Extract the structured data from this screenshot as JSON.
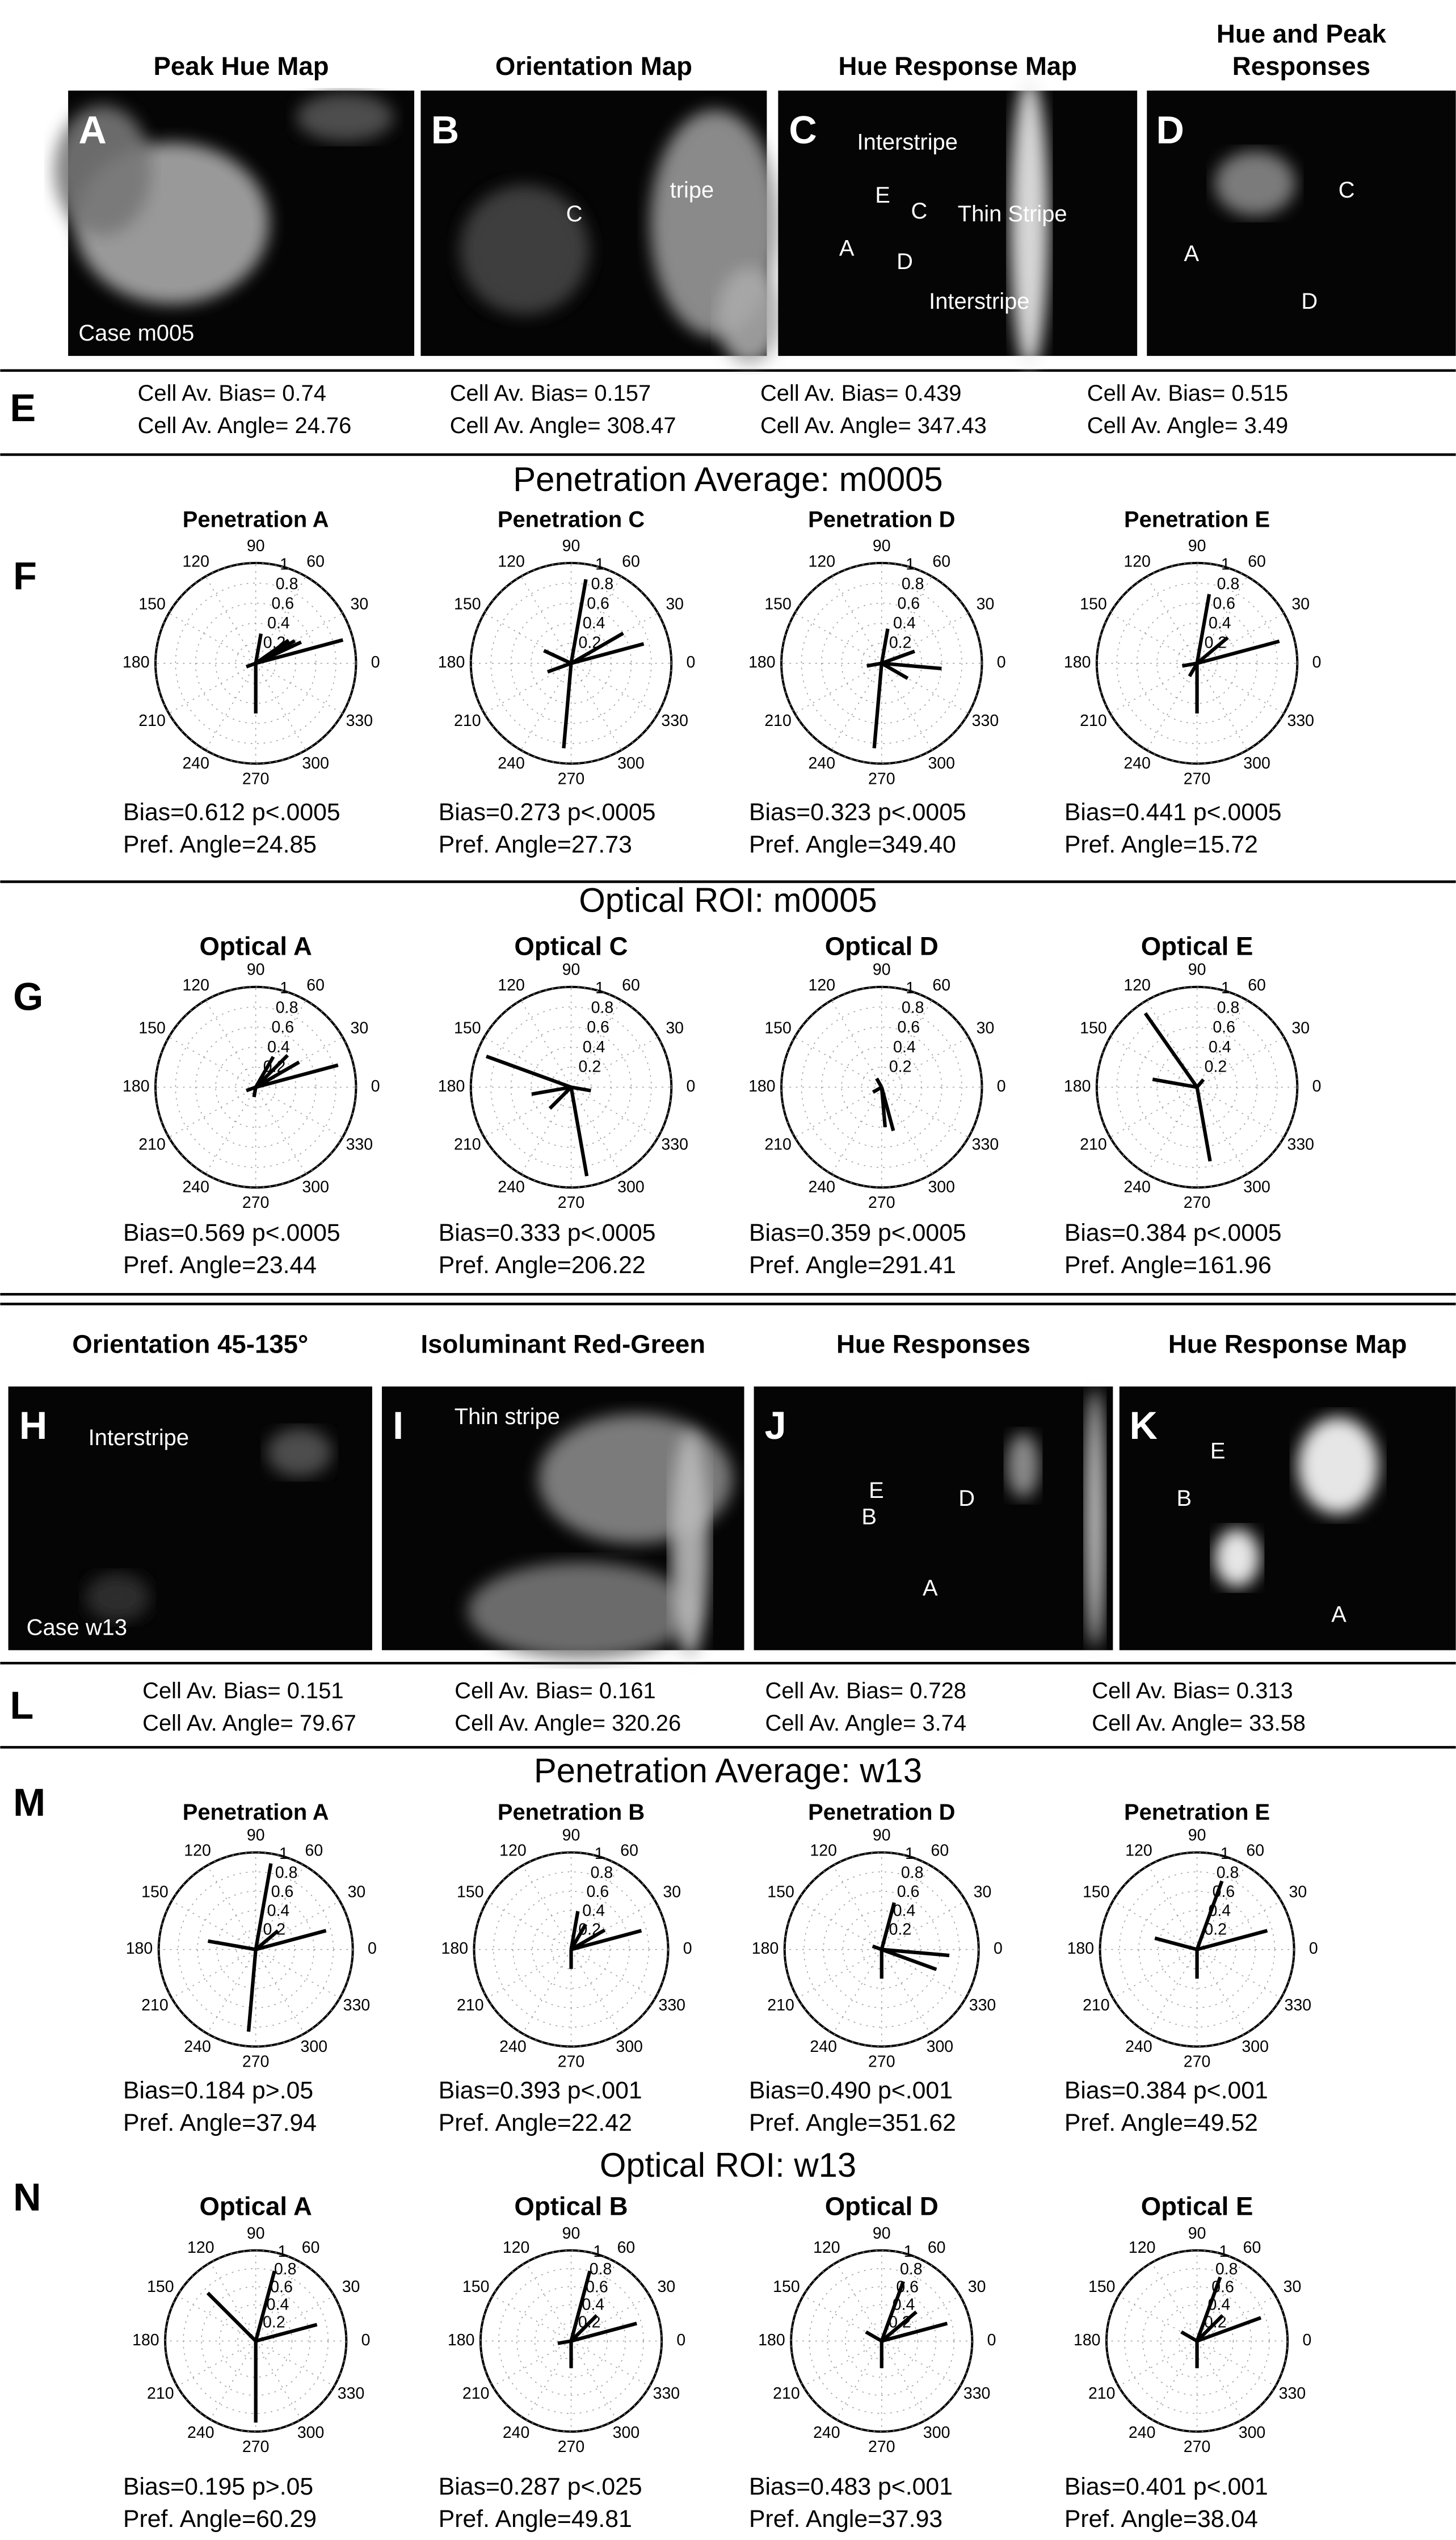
{
  "image_rows": [
    {
      "panels": [
        {
          "title": [
            "Peak Hue Map"
          ],
          "labels": [
            "A",
            "Case m005"
          ]
        },
        {
          "title": [
            "Orientation Map"
          ],
          "labels": [
            "B",
            "C",
            "tripe"
          ]
        },
        {
          "title": [
            "Hue Response Map"
          ],
          "labels": [
            "C",
            "Interstripe",
            "Thin Stripe",
            "Interstripe",
            "A",
            "E",
            "C",
            "D"
          ]
        },
        {
          "title": [
            "Hue and Peak",
            "Responses"
          ],
          "labels": [
            "D",
            "A",
            "C",
            "D"
          ]
        }
      ]
    },
    {
      "panels": [
        {
          "title": [
            "Orientation 45-135°"
          ],
          "labels": [
            "H",
            "Interstripe",
            "Case w13"
          ]
        },
        {
          "title": [
            "Isoluminant Red-Green"
          ],
          "labels": [
            "I",
            "Thin stripe"
          ]
        },
        {
          "title": [
            "Hue Responses"
          ],
          "labels": [
            "J",
            "E",
            "B",
            "D",
            "A"
          ]
        },
        {
          "title": [
            "Hue Response Map"
          ],
          "labels": [
            "K",
            "E",
            "B",
            "A"
          ]
        }
      ]
    }
  ],
  "stat_rows": [
    {
      "letter": "E",
      "cells": [
        [
          "Cell Av. Bias= 0.74",
          "Cell Av. Angle= 24.76"
        ],
        [
          "Cell Av. Bias= 0.157",
          "Cell Av. Angle= 308.47"
        ],
        [
          "Cell Av. Bias= 0.439",
          "Cell Av. Angle= 347.43"
        ],
        [
          "Cell Av. Bias= 0.515",
          "Cell Av. Angle= 3.49"
        ]
      ]
    },
    {
      "letter": "L",
      "cells": [
        [
          "Cell Av. Bias= 0.151",
          "Cell Av. Angle= 79.67"
        ],
        [
          "Cell Av. Bias= 0.161",
          "Cell Av. Angle= 320.26"
        ],
        [
          "Cell Av. Bias= 0.728",
          "Cell Av. Angle= 3.74"
        ],
        [
          "Cell Av. Bias= 0.313",
          "Cell Av. Angle= 33.58"
        ]
      ]
    }
  ],
  "angle_labels": [
    0,
    30,
    60,
    90,
    120,
    150,
    180,
    210,
    240,
    270,
    300,
    330
  ],
  "radial_labels": [
    0.2,
    0.4,
    0.6,
    0.8,
    1
  ],
  "polar_sections": [
    {
      "letter": "F",
      "heading": "Penetration Average: m0005",
      "plots": [
        {
          "title": "Penetration A",
          "stats": [
            "Bias=0.612  p<.0005",
            "Pref. Angle=24.85"
          ],
          "spokes": [
            [
              15,
              0.9
            ],
            [
              25,
              0.5
            ],
            [
              30,
              0.45
            ],
            [
              35,
              0.4
            ],
            [
              270,
              0.5
            ],
            [
              80,
              0.3
            ],
            [
              200,
              0.1
            ]
          ]
        },
        {
          "title": "Penetration C",
          "stats": [
            "Bias=0.273  p<.0005",
            "Pref. Angle=27.73"
          ],
          "spokes": [
            [
              15,
              0.75
            ],
            [
              80,
              0.85
            ],
            [
              30,
              0.6
            ],
            [
              265,
              0.85
            ],
            [
              155,
              0.3
            ],
            [
              200,
              0.25
            ]
          ]
        },
        {
          "title": "Penetration D",
          "stats": [
            "Bias=0.323  p<.0005",
            "Pref. Angle=349.40"
          ],
          "spokes": [
            [
              355,
              0.6
            ],
            [
              265,
              0.85
            ],
            [
              80,
              0.35
            ],
            [
              20,
              0.35
            ],
            [
              330,
              0.3
            ],
            [
              190,
              0.15
            ]
          ]
        },
        {
          "title": "Penetration E",
          "stats": [
            "Bias=0.441  p<.0005",
            "Pref. Angle=15.72"
          ],
          "spokes": [
            [
              15,
              0.85
            ],
            [
              80,
              0.7
            ],
            [
              270,
              0.5
            ],
            [
              40,
              0.4
            ],
            [
              190,
              0.15
            ],
            [
              240,
              0.15
            ]
          ]
        }
      ]
    },
    {
      "letter": "G",
      "heading": "Optical ROI: m0005",
      "plots": [
        {
          "title": "Optical A",
          "stats": [
            "Bias=0.569  p<.0005",
            "Pref. Angle=23.44"
          ],
          "spokes": [
            [
              15,
              0.85
            ],
            [
              30,
              0.5
            ],
            [
              45,
              0.45
            ],
            [
              60,
              0.35
            ],
            [
              200,
              0.1
            ],
            [
              260,
              0.1
            ]
          ]
        },
        {
          "title": "Optical C",
          "stats": [
            "Bias=0.333   p<.0005",
            "Pref. Angle=206.22"
          ],
          "spokes": [
            [
              160,
              0.9
            ],
            [
              280,
              0.9
            ],
            [
              190,
              0.4
            ],
            [
              225,
              0.3
            ],
            [
              350,
              0.2
            ]
          ]
        },
        {
          "title": "Optical D",
          "stats": [
            "Bias=0.359  p<.0005",
            "Pref. Angle=291.41"
          ],
          "spokes": [
            [
              285,
              0.45
            ],
            [
              275,
              0.4
            ],
            [
              120,
              0.1
            ],
            [
              210,
              0.1
            ]
          ]
        },
        {
          "title": "Optical E",
          "stats": [
            "Bias=0.384     p<.0005",
            "Pref. Angle=161.96"
          ],
          "spokes": [
            [
              125,
              0.9
            ],
            [
              280,
              0.75
            ],
            [
              170,
              0.45
            ],
            [
              50,
              0.1
            ]
          ]
        }
      ]
    },
    {
      "letter": "M",
      "heading": "Penetration Average: w13",
      "plots": [
        {
          "title": "Penetration A",
          "stats": [
            "Bias=0.184  p>.05",
            "Pref. Angle=37.94"
          ],
          "spokes": [
            [
              80,
              0.9
            ],
            [
              15,
              0.75
            ],
            [
              170,
              0.5
            ],
            [
              265,
              0.85
            ],
            [
              40,
              0.3
            ]
          ]
        },
        {
          "title": "Penetration B",
          "stats": [
            "Bias=0.393 p<.001",
            "Pref. Angle=22.42"
          ],
          "spokes": [
            [
              15,
              0.75
            ],
            [
              30,
              0.4
            ],
            [
              60,
              0.3
            ],
            [
              270,
              0.2
            ],
            [
              80,
              0.4
            ]
          ]
        },
        {
          "title": "Penetration D",
          "stats": [
            "Bias=0.490 p<.001",
            "Pref. Angle=351.62"
          ],
          "spokes": [
            [
              355,
              0.7
            ],
            [
              340,
              0.6
            ],
            [
              75,
              0.5
            ],
            [
              270,
              0.3
            ],
            [
              160,
              0.1
            ]
          ]
        },
        {
          "title": "Penetration E",
          "stats": [
            "Bias=0.384 p<.001",
            "Pref. Angle=49.52"
          ],
          "spokes": [
            [
              15,
              0.75
            ],
            [
              70,
              0.75
            ],
            [
              165,
              0.45
            ],
            [
              270,
              0.3
            ]
          ]
        }
      ]
    },
    {
      "letter": "N",
      "heading": "Optical ROI: w13",
      "plots": [
        {
          "title": "Optical A",
          "stats": [
            "Bias=0.195  p>.05",
            "Pref. Angle=60.29"
          ],
          "spokes": [
            [
              135,
              0.75
            ],
            [
              15,
              0.7
            ],
            [
              75,
              0.8
            ],
            [
              270,
              0.9
            ]
          ]
        },
        {
          "title": "Optical B",
          "stats": [
            "Bias=0.287  p<.025",
            "Pref. Angle=49.81"
          ],
          "spokes": [
            [
              15,
              0.75
            ],
            [
              75,
              0.8
            ],
            [
              45,
              0.4
            ],
            [
              270,
              0.3
            ],
            [
              190,
              0.15
            ]
          ]
        },
        {
          "title": "Optical D",
          "stats": [
            "Bias=0.483  p<.001",
            "Pref. Angle=37.93"
          ],
          "spokes": [
            [
              15,
              0.75
            ],
            [
              70,
              0.7
            ],
            [
              40,
              0.5
            ],
            [
              150,
              0.2
            ],
            [
              270,
              0.3
            ]
          ]
        },
        {
          "title": "Optical E",
          "stats": [
            "Bias=0.401 p<.001",
            "Pref. Angle=38.04"
          ],
          "spokes": [
            [
              20,
              0.75
            ],
            [
              70,
              0.75
            ],
            [
              45,
              0.4
            ],
            [
              150,
              0.2
            ],
            [
              270,
              0.3
            ]
          ]
        }
      ]
    }
  ]
}
